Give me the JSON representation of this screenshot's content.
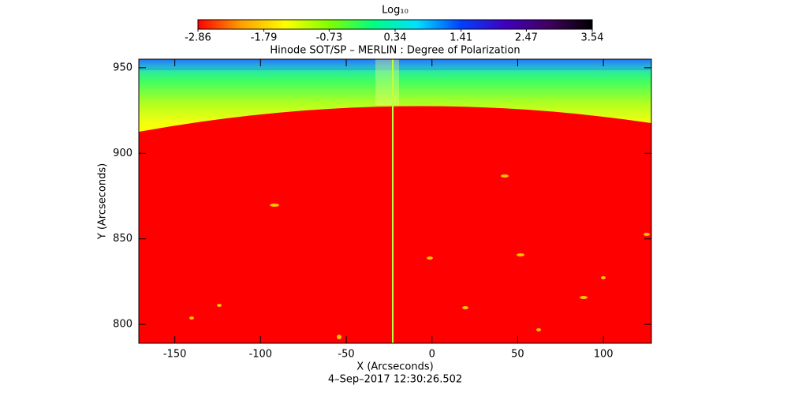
{
  "chart_data": {
    "type": "image",
    "title": "Hinode SOT/SP – MERLIN : Degree of Polarization",
    "xlabel": "X (Arcseconds)",
    "ylabel": "Y (Arcseconds)",
    "footer": "4–Sep–2017 12:30:26.502",
    "xlim": [
      -171,
      128
    ],
    "xticks": [
      -150,
      -100,
      -50,
      0,
      50,
      100
    ],
    "ylim": [
      789,
      955
    ],
    "yticks": [
      800,
      850,
      900,
      950
    ],
    "colorbar": {
      "label": "Log₁₀",
      "clim": [
        -2.86,
        3.54
      ],
      "ticks": [
        -2.86,
        -1.79,
        -0.73,
        0.34,
        1.41,
        2.47,
        3.54
      ],
      "colormap": [
        "#ff0000",
        "#ffa000",
        "#ffff00",
        "#80ff00",
        "#00ff80",
        "#00e0ff",
        "#0040ff",
        "#4000c0",
        "#400060",
        "#000000"
      ]
    }
  }
}
